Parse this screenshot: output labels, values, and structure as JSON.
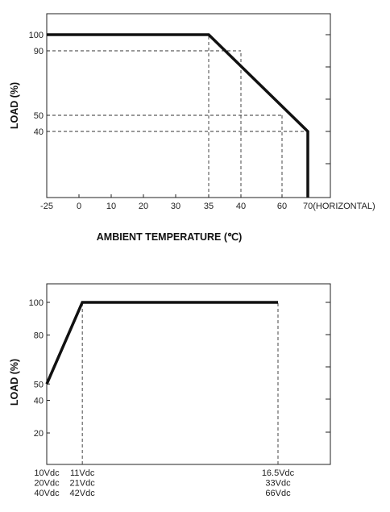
{
  "chart_data": [
    {
      "type": "line",
      "ylabel": "LOAD (%)",
      "xlabel": "AMBIENT TEMPERATURE (℃)",
      "x_tick_labels": [
        "-25",
        "0",
        "10",
        "20",
        "30",
        "35",
        "40",
        "60",
        "70(HORIZONTAL)"
      ],
      "x_tick_values": [
        -25,
        0,
        10,
        20,
        30,
        35,
        40,
        60,
        70
      ],
      "y_tick_labels": [
        "100",
        "90",
        "50",
        "40"
      ],
      "y_tick_values": [
        100,
        90,
        50,
        40
      ],
      "series": [
        {
          "x": [
            -25,
            35,
            70,
            70
          ],
          "y": [
            100,
            100,
            40,
            0
          ]
        }
      ],
      "reference_lines": [
        {
          "from": [
            -25,
            90
          ],
          "to": [
            40,
            90
          ]
        },
        {
          "from": [
            -25,
            50
          ],
          "to": [
            60,
            50
          ]
        },
        {
          "from": [
            -25,
            40
          ],
          "to": [
            70,
            40
          ]
        },
        {
          "from": [
            35,
            0
          ],
          "to": [
            35,
            100
          ]
        },
        {
          "from": [
            40,
            0
          ],
          "to": [
            40,
            90
          ]
        },
        {
          "from": [
            60,
            0
          ],
          "to": [
            60,
            50
          ]
        }
      ],
      "grid": false
    },
    {
      "type": "line",
      "ylabel": "LOAD (%)",
      "x_tick_labels": [
        [
          "10Vdc",
          "20Vdc",
          "40Vdc"
        ],
        [
          "11Vdc",
          "21Vdc",
          "42Vdc"
        ],
        [
          "16.5Vdc",
          "33Vdc",
          "66Vdc"
        ]
      ],
      "x_tick_values": [
        10,
        11,
        16.5
      ],
      "xlim": [
        10,
        17.2
      ],
      "y_tick_labels": [
        "100",
        "80",
        "50",
        "40",
        "20"
      ],
      "y_tick_values": [
        100,
        80,
        50,
        40,
        20
      ],
      "ylim": [
        0,
        110
      ],
      "series": [
        {
          "x": [
            10,
            11,
            16.5
          ],
          "y": [
            50,
            100,
            100
          ]
        }
      ],
      "reference_lines": [
        {
          "from": [
            11,
            0
          ],
          "to": [
            11,
            100
          ]
        },
        {
          "from": [
            16.5,
            0
          ],
          "to": [
            16.5,
            100
          ]
        }
      ],
      "grid": false
    }
  ]
}
